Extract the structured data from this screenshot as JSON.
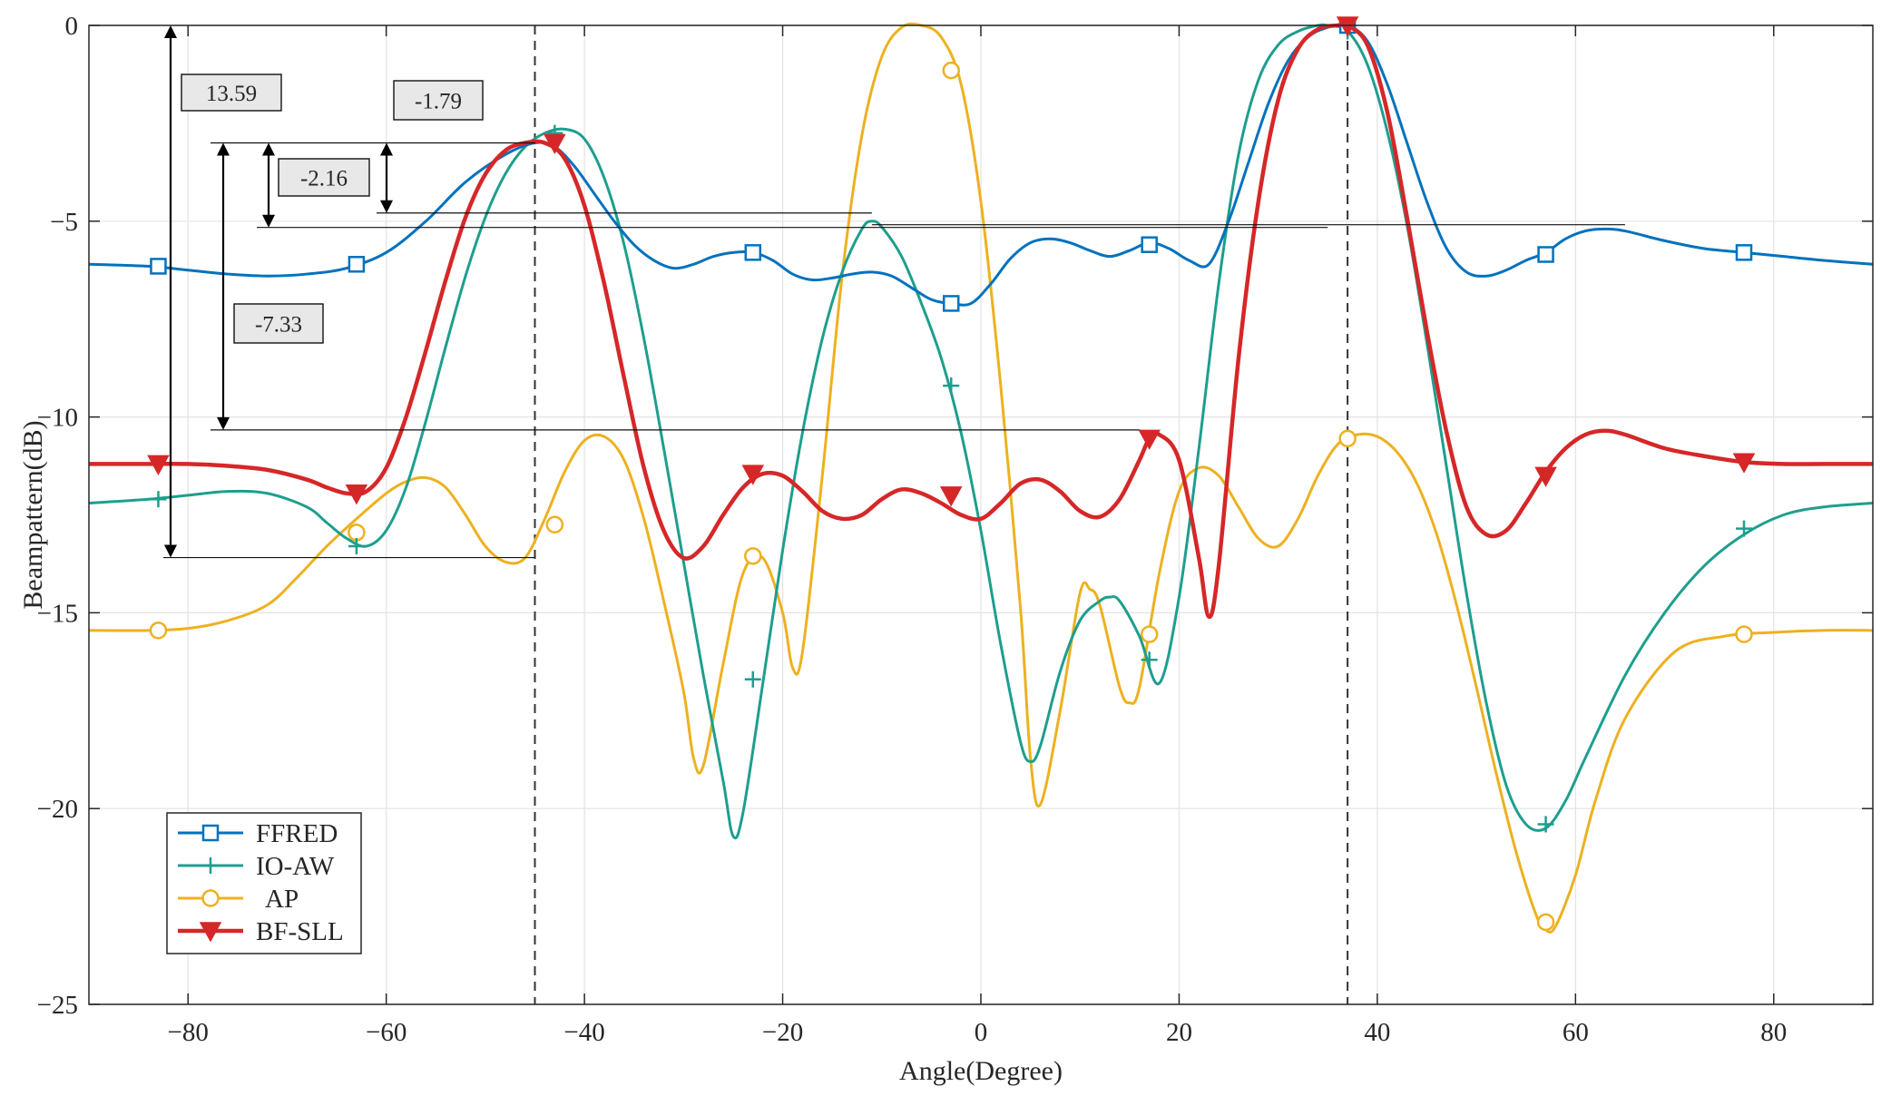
{
  "chart_data": {
    "type": "line",
    "title": "",
    "xlabel": "Angle(Degree)",
    "ylabel": "Beampattern(dB)",
    "xlim": [
      -90,
      90
    ],
    "ylim": [
      -25,
      0
    ],
    "xticks": [
      -80,
      -60,
      -40,
      -20,
      0,
      20,
      40,
      60,
      80
    ],
    "yticks": [
      0,
      -5,
      -10,
      -15,
      -20,
      -25
    ],
    "xtick_labels": [
      "−80",
      "−60",
      "−40",
      "−20",
      "0",
      "20",
      "40",
      "60",
      "80"
    ],
    "ytick_labels": [
      "0",
      "−5",
      "−10",
      "−15",
      "−20",
      "−25"
    ],
    "grid": true,
    "legend_position": "bottom-left",
    "vlines": [
      -45,
      37
    ],
    "series": [
      {
        "name": "FFRED",
        "color": "#0072BD",
        "marker": "square",
        "x": [
          -90,
          -84,
          -80,
          -76,
          -72,
          -68,
          -64,
          -60,
          -56,
          -52,
          -48,
          -45,
          -43,
          -41,
          -39,
          -37,
          -35,
          -33,
          -31,
          -29,
          -27,
          -25,
          -23,
          -21,
          -19,
          -17,
          -15,
          -13,
          -11,
          -9,
          -7,
          -5,
          -3,
          -1,
          1,
          3,
          5,
          7,
          9,
          11,
          13,
          15,
          17,
          19,
          21,
          23,
          25,
          27,
          29,
          31,
          33,
          35,
          37,
          39,
          41,
          43,
          45,
          47,
          49,
          51,
          53,
          55,
          57,
          59,
          61,
          63,
          65,
          69,
          73,
          77,
          81,
          85,
          90
        ],
        "y": [
          -6.1,
          -6.15,
          -6.25,
          -6.35,
          -6.4,
          -6.35,
          -6.2,
          -5.8,
          -5.0,
          -4.0,
          -3.3,
          -3.0,
          -3.1,
          -3.6,
          -4.3,
          -5.0,
          -5.6,
          -6.0,
          -6.2,
          -6.1,
          -5.9,
          -5.8,
          -5.8,
          -6.0,
          -6.35,
          -6.5,
          -6.45,
          -6.35,
          -6.3,
          -6.4,
          -6.7,
          -7.0,
          -7.1,
          -7.1,
          -6.6,
          -5.95,
          -5.55,
          -5.45,
          -5.55,
          -5.75,
          -5.9,
          -5.75,
          -5.55,
          -5.7,
          -6.0,
          -6.1,
          -5.0,
          -3.5,
          -2.0,
          -0.9,
          -0.3,
          -0.05,
          0.0,
          -0.4,
          -1.5,
          -3.0,
          -4.5,
          -5.7,
          -6.3,
          -6.4,
          -6.25,
          -6.0,
          -5.8,
          -5.45,
          -5.25,
          -5.2,
          -5.25,
          -5.5,
          -5.7,
          -5.8,
          -5.9,
          -6.0,
          -6.1
        ],
        "markers_x": [
          -83,
          -63,
          -23,
          -3,
          17,
          37,
          57,
          77
        ],
        "markers_y": [
          -6.15,
          -6.1,
          -5.8,
          -7.1,
          -5.6,
          0.0,
          -5.85,
          -5.8
        ]
      },
      {
        "name": "IO-AW",
        "color": "#1E9E8E",
        "marker": "plus",
        "x": [
          -90,
          -84,
          -80,
          -76,
          -72,
          -68,
          -66,
          -64,
          -62,
          -60,
          -58,
          -56,
          -54,
          -52,
          -50,
          -48,
          -46,
          -44,
          -42,
          -40,
          -38,
          -36,
          -34,
          -32,
          -30,
          -28,
          -26,
          -25,
          -24,
          -22,
          -20,
          -18,
          -16,
          -14,
          -12,
          -11,
          -10,
          -8,
          -6,
          -4,
          -2,
          0,
          2,
          4,
          5,
          6,
          8,
          10,
          12,
          13,
          14,
          16,
          18,
          20,
          22,
          24,
          26,
          28,
          30,
          32,
          34,
          35,
          37,
          39,
          41,
          43,
          45,
          47,
          49,
          51,
          53,
          55,
          57,
          59,
          61,
          65,
          69,
          73,
          77,
          81,
          85,
          90
        ],
        "y": [
          -12.2,
          -12.1,
          -12.0,
          -11.9,
          -11.95,
          -12.3,
          -12.7,
          -13.1,
          -13.3,
          -12.9,
          -11.8,
          -10.1,
          -8.2,
          -6.4,
          -4.9,
          -3.8,
          -3.1,
          -2.75,
          -2.65,
          -2.9,
          -3.9,
          -5.6,
          -8.0,
          -10.8,
          -13.7,
          -16.6,
          -19.3,
          -20.7,
          -20.1,
          -16.8,
          -13.4,
          -10.4,
          -8.0,
          -6.3,
          -5.2,
          -5.0,
          -5.15,
          -5.9,
          -7.1,
          -8.5,
          -10.4,
          -12.9,
          -15.8,
          -18.3,
          -18.8,
          -18.4,
          -16.5,
          -15.2,
          -14.7,
          -14.6,
          -14.7,
          -15.6,
          -16.8,
          -14.6,
          -10.8,
          -6.6,
          -3.3,
          -1.4,
          -0.5,
          -0.15,
          0.0,
          0.0,
          -0.15,
          -1.0,
          -2.7,
          -5.1,
          -8.1,
          -11.3,
          -14.5,
          -17.3,
          -19.4,
          -20.4,
          -20.5,
          -19.8,
          -18.7,
          -16.6,
          -15.0,
          -13.8,
          -13.0,
          -12.5,
          -12.3,
          -12.2
        ],
        "markers_x": [
          -83,
          -63,
          -43,
          -23,
          -3,
          17,
          37,
          57,
          77
        ],
        "markers_y": [
          -12.1,
          -13.3,
          -2.75,
          -16.7,
          -9.2,
          -16.2,
          -0.15,
          -20.4,
          -12.85
        ]
      },
      {
        "name": "AP",
        "color": "#EDB120",
        "marker": "circle",
        "x": [
          -90,
          -84,
          -80,
          -76,
          -72,
          -69,
          -66,
          -63,
          -60,
          -58,
          -56,
          -54,
          -52,
          -50,
          -48,
          -46,
          -44,
          -42,
          -40,
          -38,
          -36,
          -34,
          -32,
          -30,
          -29,
          -28,
          -26,
          -24,
          -22,
          -20,
          -19,
          -18,
          -16,
          -14,
          -12,
          -10,
          -8,
          -6,
          -4,
          -2,
          0,
          2,
          4,
          5,
          6,
          8,
          10,
          11,
          12,
          14,
          15,
          16,
          18,
          20,
          22,
          24,
          26,
          28,
          30,
          32,
          34,
          36,
          38,
          40,
          42,
          44,
          46,
          48,
          50,
          52,
          54,
          56,
          57,
          58,
          60,
          62,
          65,
          70,
          75,
          80,
          85,
          90
        ],
        "y": [
          -15.45,
          -15.45,
          -15.4,
          -15.2,
          -14.8,
          -14.1,
          -13.3,
          -12.6,
          -11.95,
          -11.65,
          -11.55,
          -11.8,
          -12.5,
          -13.3,
          -13.7,
          -13.6,
          -12.6,
          -11.4,
          -10.6,
          -10.5,
          -11.1,
          -12.6,
          -14.7,
          -17.0,
          -18.7,
          -18.9,
          -16.3,
          -14.0,
          -13.6,
          -15.0,
          -16.4,
          -16.0,
          -11.5,
          -6.4,
          -2.8,
          -0.8,
          -0.05,
          0.0,
          -0.3,
          -1.5,
          -4.5,
          -9.2,
          -14.9,
          -18.7,
          -19.9,
          -17.5,
          -14.5,
          -14.4,
          -14.8,
          -16.9,
          -17.3,
          -16.9,
          -14.0,
          -11.9,
          -11.3,
          -11.5,
          -12.3,
          -13.1,
          -13.3,
          -12.6,
          -11.5,
          -10.7,
          -10.45,
          -10.5,
          -10.9,
          -11.7,
          -13.0,
          -14.8,
          -16.9,
          -19.1,
          -21.1,
          -22.7,
          -23.1,
          -23.0,
          -21.7,
          -19.8,
          -17.7,
          -16.0,
          -15.6,
          -15.5,
          -15.45,
          -15.45
        ],
        "markers_x": [
          -83,
          -63,
          -43,
          -23,
          -3,
          17,
          37,
          57,
          77
        ],
        "markers_y": [
          -15.45,
          -12.95,
          -12.75,
          -13.55,
          -1.15,
          -15.55,
          -10.55,
          -22.9,
          -15.55
        ]
      },
      {
        "name": "BF-SLL",
        "color": "#D62728",
        "marker": "triangle-down",
        "x": [
          -90,
          -84,
          -80,
          -76,
          -72,
          -68,
          -66,
          -64,
          -62,
          -60,
          -58,
          -56,
          -54,
          -52,
          -50,
          -48,
          -46,
          -44,
          -42,
          -40,
          -38,
          -36,
          -34,
          -32,
          -30,
          -28,
          -26,
          -24,
          -22,
          -20,
          -18,
          -16,
          -14,
          -12,
          -10,
          -8,
          -6,
          -4,
          -2,
          0,
          2,
          4,
          6,
          8,
          10,
          12,
          14,
          16,
          17,
          18,
          20,
          22,
          23,
          24,
          26,
          28,
          30,
          32,
          34,
          36,
          37,
          39,
          41,
          43,
          45,
          47,
          49,
          51,
          53,
          55,
          57,
          59,
          61,
          63,
          65,
          69,
          73,
          77,
          81,
          85,
          90
        ],
        "y": [
          -11.2,
          -11.2,
          -11.2,
          -11.25,
          -11.35,
          -11.6,
          -11.8,
          -11.95,
          -11.9,
          -11.3,
          -10.0,
          -8.3,
          -6.5,
          -4.9,
          -3.8,
          -3.2,
          -3.0,
          -3.0,
          -3.4,
          -4.6,
          -6.6,
          -9.0,
          -11.3,
          -12.9,
          -13.6,
          -13.3,
          -12.5,
          -11.8,
          -11.45,
          -11.5,
          -11.9,
          -12.4,
          -12.6,
          -12.5,
          -12.1,
          -11.85,
          -11.95,
          -12.2,
          -12.5,
          -12.6,
          -12.2,
          -11.7,
          -11.6,
          -11.9,
          -12.4,
          -12.55,
          -12.1,
          -11.1,
          -10.55,
          -10.45,
          -11.1,
          -13.6,
          -15.1,
          -13.8,
          -8.5,
          -4.5,
          -1.9,
          -0.6,
          -0.1,
          0.0,
          0.0,
          -0.5,
          -2.2,
          -4.9,
          -7.8,
          -10.4,
          -12.3,
          -13.0,
          -12.9,
          -12.2,
          -11.4,
          -10.8,
          -10.45,
          -10.35,
          -10.45,
          -10.8,
          -11.0,
          -11.15,
          -11.2,
          -11.2,
          -11.2
        ],
        "markers_x": [
          -83,
          -63,
          -43,
          -23,
          -3,
          17,
          37,
          57,
          77
        ],
        "markers_y": [
          -11.2,
          -11.95,
          -3.0,
          -11.45,
          -12.0,
          -10.55,
          0.0,
          -11.5,
          -11.15
        ]
      }
    ],
    "annotations": [
      {
        "text": "13.59",
        "top": -3.0,
        "bottom": -13.59
      },
      {
        "text": "-1.79",
        "top": -3.0,
        "bottom": -4.79
      },
      {
        "text": "-2.16",
        "top": -3.0,
        "bottom": -5.16
      },
      {
        "text": "-7.33",
        "top": -3.0,
        "bottom": -10.33
      }
    ]
  }
}
